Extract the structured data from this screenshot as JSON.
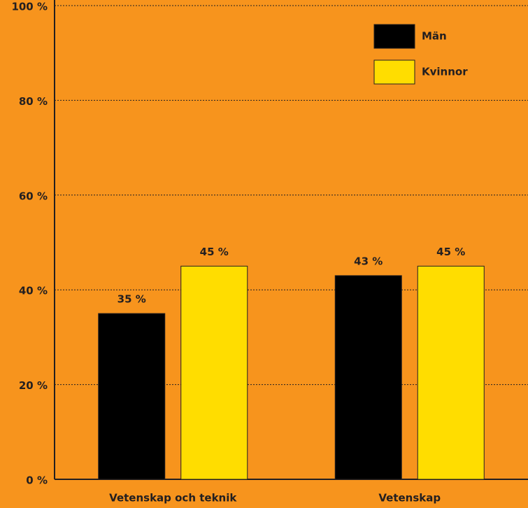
{
  "chart_data": {
    "type": "bar",
    "categories": [
      "Vetenskap och teknik",
      "Vetenskap"
    ],
    "series": [
      {
        "name": "Män",
        "color": "#000000",
        "values": [
          35,
          43
        ],
        "value_labels": [
          "35 %",
          "43 %"
        ]
      },
      {
        "name": "Kvinnor",
        "color": "#ffdd00",
        "values": [
          45,
          45
        ],
        "value_labels": [
          "45 %",
          "45 %"
        ]
      }
    ],
    "ylim": [
      0,
      100
    ],
    "yticks": [
      {
        "value": 0,
        "label": "0 %"
      },
      {
        "value": 20,
        "label": "20 %"
      },
      {
        "value": 40,
        "label": "40 %"
      },
      {
        "value": 60,
        "label": "60 %"
      },
      {
        "value": 80,
        "label": "80 %"
      },
      {
        "value": 100,
        "label": "100 %"
      }
    ],
    "grid": true,
    "legend": "top-right"
  }
}
